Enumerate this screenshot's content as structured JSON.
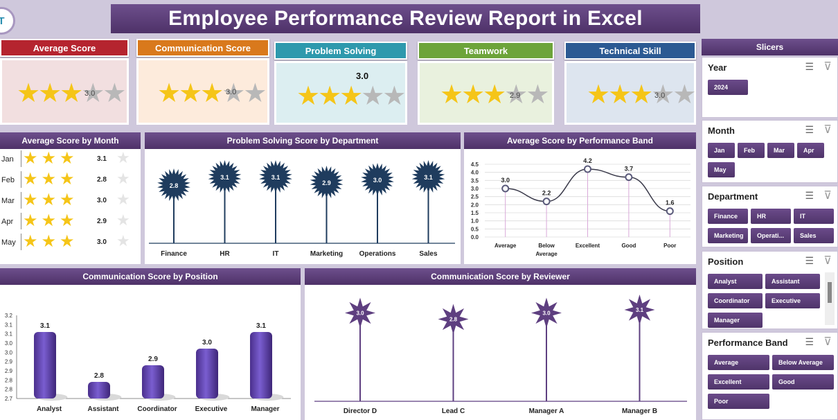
{
  "title": "Employee Performance Review Report in Excel",
  "logo_text": "T",
  "kpis": [
    {
      "label": "Average Score",
      "value": "3.0",
      "stars_on": 3,
      "color": "#b5242f",
      "bg": "#f2dfe0"
    },
    {
      "label": "Communication Score",
      "value": "3.0",
      "stars_on": 3,
      "color": "#d9791c",
      "bg": "#fdebdc"
    },
    {
      "label": "Problem Solving",
      "value": "3.0",
      "stars_on": 3,
      "color": "#2e99ad",
      "bg": "#dceef1"
    },
    {
      "label": "Teamwork",
      "value": "2.9",
      "stars_on": 3,
      "color": "#6da43a",
      "bg": "#e9f1de"
    },
    {
      "label": "Technical Skill",
      "value": "3.0",
      "stars_on": 3,
      "color": "#2c5a93",
      "bg": "#dde5ef"
    }
  ],
  "month_panel": {
    "title": "Average Score by Month",
    "rows": [
      {
        "month": "Jan",
        "value": "3.1"
      },
      {
        "month": "Feb",
        "value": "2.8"
      },
      {
        "month": "Mar",
        "value": "3.0"
      },
      {
        "month": "Apr",
        "value": "2.9"
      },
      {
        "month": "May",
        "value": "3.0"
      }
    ]
  },
  "dept_panel": {
    "title": "Problem Solving Score  by Department"
  },
  "band_panel": {
    "title": "Average Score by Performance Band"
  },
  "position_panel": {
    "title": "Communication Score  by Position"
  },
  "reviewer_panel": {
    "title": "Communication Score  by Reviewer"
  },
  "chart_data": [
    {
      "type": "bar",
      "title": "Problem Solving Score  by Department",
      "categories": [
        "Finance",
        "HR",
        "IT",
        "Marketing",
        "Operations",
        "Sales"
      ],
      "values": [
        2.8,
        3.1,
        3.1,
        2.9,
        3.0,
        3.1
      ],
      "labels": [
        "2.8",
        "3.1",
        "3.1",
        "2.9",
        "3.0",
        "3.1"
      ]
    },
    {
      "type": "line",
      "title": "Average Score by Performance Band",
      "categories": [
        "Average",
        "Below Average",
        "Excellent",
        "Good",
        "Poor"
      ],
      "values": [
        3.0,
        2.2,
        4.2,
        3.7,
        1.6
      ],
      "labels": [
        "3.0",
        "2.2",
        "4.2",
        "3.7",
        "1.6"
      ],
      "ylim": [
        0,
        4.5
      ],
      "yticks": [
        "4.5",
        "4.0",
        "3.5",
        "3.0",
        "2.5",
        "2.0",
        "1.5",
        "1.0",
        "0.5",
        "0.0"
      ],
      "grid": true
    },
    {
      "type": "bar",
      "title": "Communication Score  by Position",
      "categories": [
        "Analyst",
        "Assistant",
        "Coordinator",
        "Executive",
        "Manager"
      ],
      "values": [
        3.1,
        2.8,
        2.9,
        3.0,
        3.1
      ],
      "labels": [
        "3.1",
        "2.8",
        "2.9",
        "3.0",
        "3.1"
      ],
      "ylim": [
        2.7,
        3.2
      ],
      "yticks": [
        "3.2",
        "3.1",
        "3.1",
        "3.0",
        "3.0",
        "2.9",
        "2.9",
        "2.8",
        "2.8",
        "2.7"
      ]
    },
    {
      "type": "bar",
      "title": "Communication Score  by Reviewer",
      "categories": [
        "Director D",
        "Lead C",
        "Manager A",
        "Manager B"
      ],
      "values": [
        3.0,
        2.8,
        3.0,
        3.1
      ],
      "labels": [
        "3.0",
        "2.8",
        "3.0",
        "3.1"
      ]
    }
  ],
  "slicers": {
    "header": "Slicers",
    "groups": [
      {
        "title": "Year",
        "items": [
          "2024"
        ]
      },
      {
        "title": "Month",
        "items": [
          "Jan",
          "Feb",
          "Mar",
          "Apr",
          "May"
        ]
      },
      {
        "title": "Department",
        "items": [
          "Finance",
          "HR",
          "IT",
          "Marketing",
          "Operati...",
          "Sales"
        ]
      },
      {
        "title": "Position",
        "items": [
          "Analyst",
          "Assistant",
          "Coordinator",
          "Executive",
          "Manager"
        ]
      },
      {
        "title": "Performance Band",
        "items": [
          "Average",
          "Below Average",
          "Excellent",
          "Good",
          "Poor"
        ]
      }
    ]
  },
  "colors": {
    "header": "#5a3d78",
    "bar": "#6a4fb0",
    "starburst_dept": "#1f3c5e",
    "starburst_rev": "#5e3f80",
    "star": "#f5c518"
  }
}
